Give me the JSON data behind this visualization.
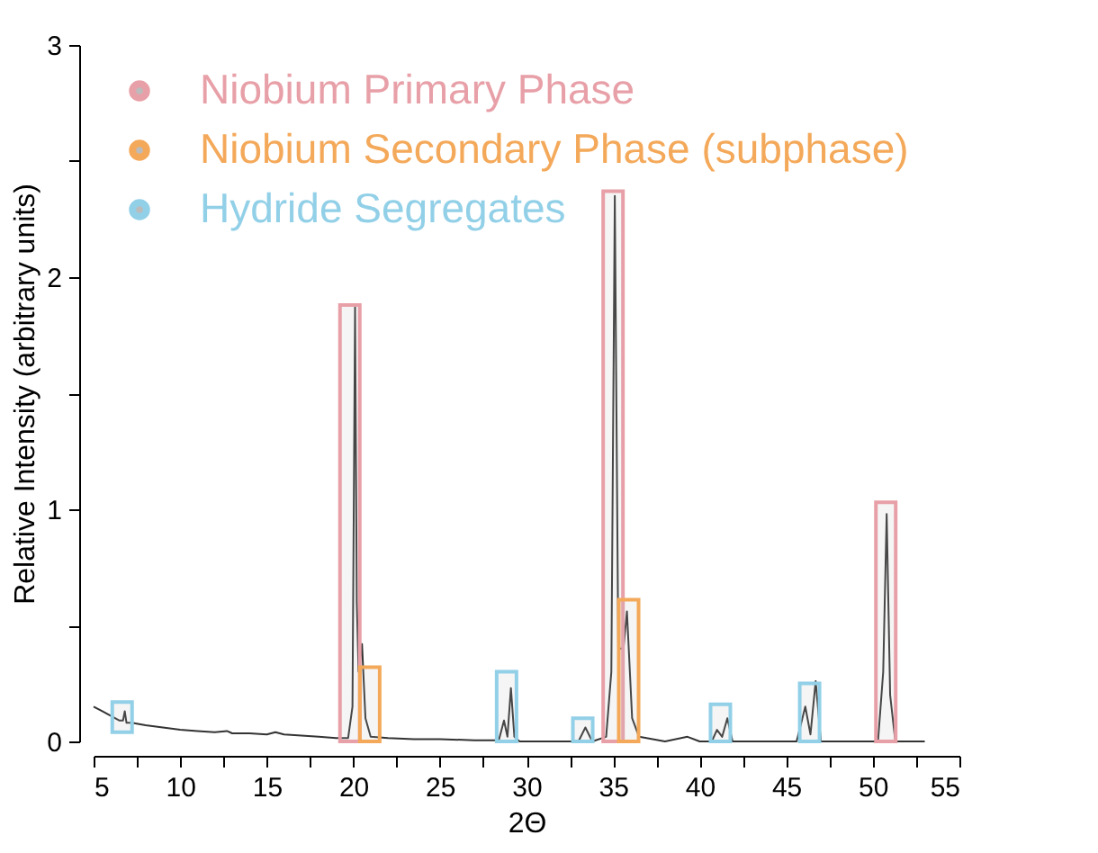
{
  "chart_data": {
    "type": "line",
    "xlabel": "2Θ",
    "ylabel": "Relative Intensity (arbitrary units)",
    "xlim": [
      5,
      55
    ],
    "ylim": [
      0,
      3
    ],
    "xticks": [
      5,
      {
        "value": 7.5,
        "label": null
      },
      10,
      {
        "value": 12.5,
        "label": null
      },
      15,
      {
        "value": 17.5,
        "label": null
      },
      20,
      {
        "value": 22.5,
        "label": null
      },
      25,
      {
        "value": 27.5,
        "label": null
      },
      30,
      {
        "value": 32.5,
        "label": null
      },
      35,
      {
        "value": 37.5,
        "label": null
      },
      40,
      {
        "value": 42.5,
        "label": null
      },
      45,
      {
        "value": 47.5,
        "label": null
      },
      50,
      {
        "value": 52.5,
        "label": null
      },
      55
    ],
    "yticks": [
      0,
      {
        "value": 0.5,
        "label": null
      },
      1,
      {
        "value": 1.5,
        "label": null
      },
      2,
      {
        "value": 2.5,
        "label": null
      },
      3
    ],
    "grid": false,
    "legend": "top left",
    "series": [
      {
        "color": "#333333",
        "x": [
          5.0,
          5.5,
          6.0,
          6.5,
          6.7,
          6.8,
          6.9,
          7.2,
          8.0,
          9.0,
          10.0,
          11.0,
          12.0,
          12.7,
          13.0,
          14.0,
          15.0,
          15.5,
          16.0,
          17.0,
          18.0,
          19.0,
          19.7,
          19.95,
          20.1,
          20.2,
          20.3,
          20.5,
          20.7,
          21.0,
          22.0,
          23.5,
          25.0,
          27.0,
          28.4,
          28.7,
          28.9,
          29.1,
          29.3,
          29.6,
          31.0,
          33.0,
          33.4,
          33.8,
          34.6,
          34.9,
          35.1,
          35.3,
          35.6,
          35.8,
          36.1,
          36.5,
          38.0,
          39.3,
          40.0,
          40.7,
          41.0,
          41.3,
          41.6,
          41.9,
          43.0,
          45.6,
          46.1,
          46.4,
          46.7,
          47.0,
          48.0,
          50.3,
          50.6,
          50.8,
          51.0,
          51.3,
          53.0
        ],
        "values": [
          0.15,
          0.13,
          0.11,
          0.09,
          0.09,
          0.13,
          0.08,
          0.08,
          0.07,
          0.06,
          0.05,
          0.045,
          0.04,
          0.045,
          0.035,
          0.035,
          0.03,
          0.04,
          0.03,
          0.025,
          0.02,
          0.015,
          0.015,
          0.15,
          1.87,
          0.6,
          0.3,
          0.42,
          0.1,
          0.02,
          0.015,
          0.01,
          0.01,
          0.005,
          0.005,
          0.09,
          0.02,
          0.23,
          0.02,
          0.0,
          0.0,
          0.0,
          0.06,
          0.0,
          0.02,
          0.3,
          2.35,
          0.4,
          0.4,
          0.56,
          0.1,
          0.02,
          0.0,
          0.02,
          0.0,
          0.0,
          0.05,
          0.02,
          0.1,
          0.0,
          0.0,
          0.0,
          0.15,
          0.03,
          0.26,
          0.0,
          0.0,
          0.0,
          0.3,
          0.98,
          0.2,
          0.0,
          0.0
        ]
      },
      {
        "type": "bar",
        "name": "Niobium Primary Phase",
        "color": "#e8a0a8",
        "x": [
          19.8,
          35.0,
          50.75
        ],
        "base": [
          0,
          0,
          0
        ],
        "values": [
          1.88,
          2.37,
          1.03
        ]
      },
      {
        "type": "bar",
        "name": "Niobium Secondary Phase (subphase)",
        "color": "#f4a95a",
        "x": [
          20.95,
          35.9
        ],
        "base": [
          0,
          0
        ],
        "values": [
          0.32,
          0.61
        ]
      },
      {
        "type": "bar",
        "name": "Hydride Segregates",
        "color": "#92d0e8",
        "x": [
          6.65,
          28.85,
          33.25,
          41.2,
          46.35
        ],
        "base": [
          0.04,
          0,
          0,
          0,
          0
        ],
        "values": [
          0.13,
          0.3,
          0.1,
          0.16,
          0.25
        ]
      }
    ]
  }
}
